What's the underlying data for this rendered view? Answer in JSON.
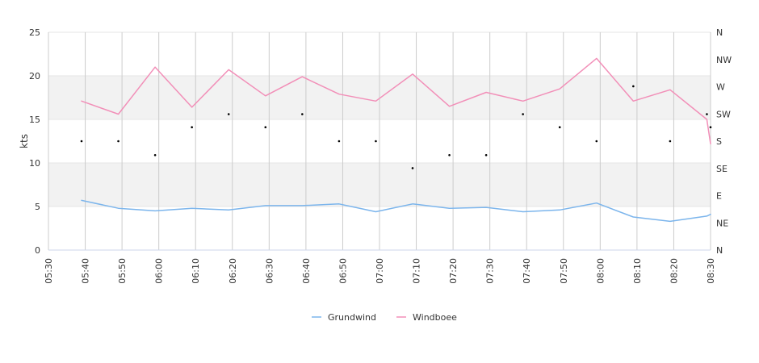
{
  "chart_data": {
    "type": "line",
    "ylabel": "kts",
    "ylim": [
      0,
      25
    ],
    "y_ticks": [
      "0",
      "5",
      "10",
      "15",
      "20",
      "25"
    ],
    "x_ticks": [
      "05:30",
      "05:40",
      "05:50",
      "06:00",
      "06:10",
      "06:20",
      "06:30",
      "06:40",
      "06:50",
      "07:00",
      "07:10",
      "07:20",
      "07:30",
      "07:40",
      "07:50",
      "08:00",
      "08:10",
      "08:20",
      "08:30"
    ],
    "right_axis_ticks": [
      "N",
      "NE",
      "E",
      "SE",
      "S",
      "SW",
      "W",
      "NW",
      "N"
    ],
    "bands": [
      [
        5,
        10
      ],
      [
        15,
        20
      ]
    ],
    "grid": true,
    "legend_position": "bottom",
    "x": [
      "05:39",
      "05:49",
      "05:59",
      "06:09",
      "06:19",
      "06:29",
      "06:39",
      "06:49",
      "06:59",
      "07:09",
      "07:19",
      "07:29",
      "07:39",
      "07:49",
      "07:59",
      "08:09",
      "08:19",
      "08:29",
      "08:30"
    ],
    "series": [
      {
        "name": "Grundwind",
        "color": "#7cb5ec",
        "values": [
          5.7,
          4.8,
          4.5,
          4.8,
          4.6,
          5.1,
          5.1,
          5.3,
          4.4,
          5.3,
          4.8,
          4.9,
          4.4,
          4.6,
          5.4,
          3.8,
          3.3,
          3.9,
          4.1
        ]
      },
      {
        "name": "Windboee",
        "color": "#f28fb8",
        "values": [
          17.1,
          15.6,
          21.0,
          16.4,
          20.7,
          17.7,
          19.9,
          17.9,
          17.1,
          20.2,
          16.5,
          18.1,
          17.1,
          18.5,
          22.0,
          17.1,
          18.4,
          15.0,
          12.2
        ]
      }
    ],
    "direction_points": [
      {
        "x": "05:39",
        "y": 12.5
      },
      {
        "x": "05:49",
        "y": 12.5
      },
      {
        "x": "05:59",
        "y": 10.9
      },
      {
        "x": "06:09",
        "y": 14.1
      },
      {
        "x": "06:19",
        "y": 15.6
      },
      {
        "x": "06:29",
        "y": 14.1
      },
      {
        "x": "06:39",
        "y": 15.6
      },
      {
        "x": "06:49",
        "y": 12.5
      },
      {
        "x": "06:59",
        "y": 12.5
      },
      {
        "x": "07:09",
        "y": 9.4
      },
      {
        "x": "07:19",
        "y": 10.9
      },
      {
        "x": "07:29",
        "y": 10.9
      },
      {
        "x": "07:39",
        "y": 15.6
      },
      {
        "x": "07:49",
        "y": 14.1
      },
      {
        "x": "07:59",
        "y": 12.5
      },
      {
        "x": "08:09",
        "y": 18.8
      },
      {
        "x": "08:19",
        "y": 12.5
      },
      {
        "x": "08:29",
        "y": 15.6
      },
      {
        "x": "08:30",
        "y": 14.1
      }
    ]
  }
}
